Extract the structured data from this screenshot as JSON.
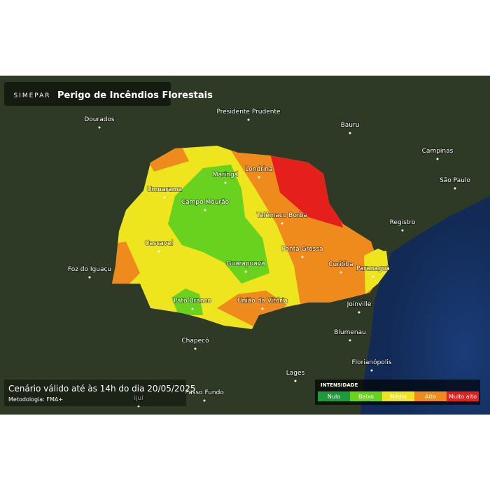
{
  "header": {
    "brand": "SIMEPAR",
    "title": "Perigo de Incêndios Florestais"
  },
  "cities": [
    "Dourados",
    "Presidente Prudente",
    "Bauru",
    "Campinas",
    "São Paulo",
    "Registro",
    "Umuarama",
    "Maringá",
    "Londrina",
    "Campo Mourão",
    "Telêmaco Borba",
    "Cascavel",
    "Ponta Grossa",
    "Foz do Iguaçu",
    "Guarapuava",
    "Curitiba",
    "Paranaguá",
    "Pato Branco",
    "União da Vitória",
    "Joinville",
    "Chapecó",
    "Blumenau",
    "Florianópolis",
    "Lages",
    "Passo Fundo",
    "Ijuí"
  ],
  "footer": {
    "validity": "Cenário válido até às 14h do dia 20/05/2025",
    "method": "Metodologia: FMA+"
  },
  "legend": {
    "title": "INTENSIDADE",
    "items": [
      {
        "label": "Nulo",
        "color": "#1f9a3a"
      },
      {
        "label": "Baixo",
        "color": "#68d21e"
      },
      {
        "label": "Médio",
        "color": "#eee51f"
      },
      {
        "label": "Alto",
        "color": "#ef8a1d"
      },
      {
        "label": "Muito alto",
        "color": "#e5201c"
      }
    ]
  }
}
